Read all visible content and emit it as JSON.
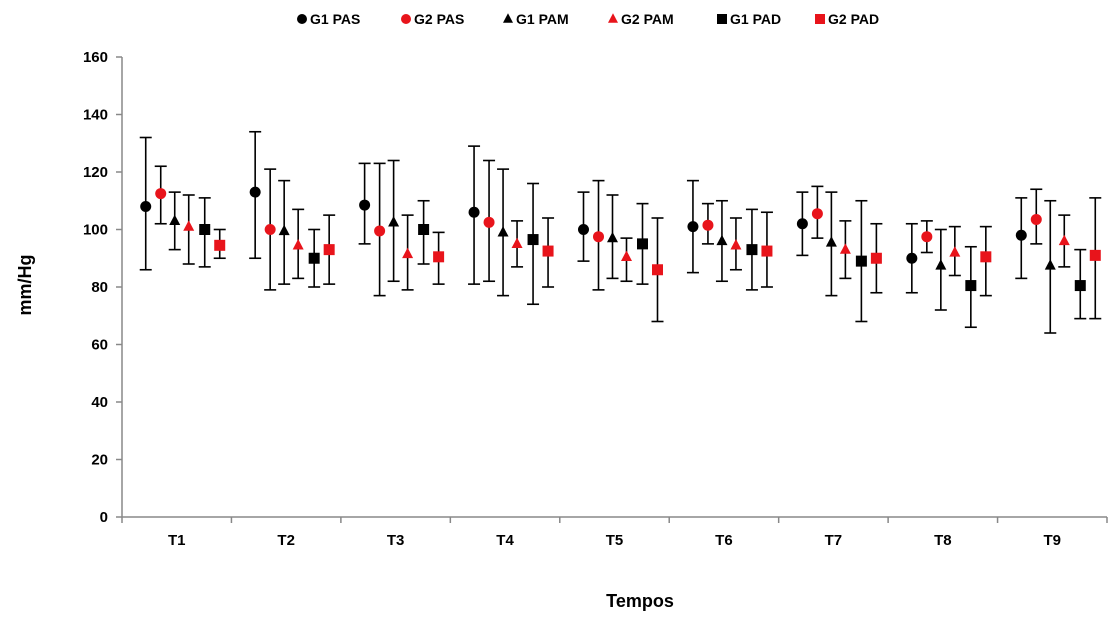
{
  "chart_data": {
    "type": "scatter",
    "title": "",
    "xlabel": "Tempos",
    "ylabel": "mm/Hg",
    "ylim": [
      0,
      160
    ],
    "yticks": [
      0,
      20,
      40,
      60,
      80,
      100,
      120,
      140,
      160
    ],
    "categories": [
      "T1",
      "T2",
      "T3",
      "T4",
      "T5",
      "T6",
      "T7",
      "T8",
      "T9"
    ],
    "legend_position": "top",
    "grid": false,
    "series": [
      {
        "name": "G1 PAS",
        "marker": "circle",
        "color": "#000000",
        "values": [
          108,
          113,
          108.5,
          106,
          100,
          101,
          102,
          90,
          98
        ],
        "err_low": [
          86,
          90,
          95,
          81,
          89,
          85,
          91,
          78,
          83
        ],
        "err_high": [
          132,
          134,
          123,
          129,
          113,
          117,
          113,
          102,
          111
        ]
      },
      {
        "name": "G2 PAS",
        "marker": "circle",
        "color": "#e8141b",
        "values": [
          112.5,
          100,
          99.5,
          102.5,
          97.5,
          101.5,
          105.5,
          97.5,
          103.5
        ],
        "err_low": [
          102,
          79,
          77,
          82,
          79,
          95,
          97,
          92,
          95
        ],
        "err_high": [
          122,
          121,
          123,
          124,
          117,
          109,
          115,
          103,
          114
        ]
      },
      {
        "name": "G1 PAM",
        "marker": "triangle",
        "color": "#000000",
        "values": [
          103,
          99.5,
          102.5,
          99,
          97,
          96,
          95.5,
          87.5,
          87.5
        ],
        "err_low": [
          93,
          81,
          82,
          77,
          83,
          82,
          77,
          72,
          64
        ],
        "err_high": [
          113,
          117,
          124,
          121,
          112,
          110,
          113,
          100,
          110
        ]
      },
      {
        "name": "G2 PAM",
        "marker": "triangle",
        "color": "#e8141b",
        "values": [
          101,
          94.5,
          91.5,
          95,
          90.5,
          94.5,
          93,
          92,
          96
        ],
        "err_low": [
          88,
          83,
          79,
          87,
          82,
          86,
          83,
          84,
          87
        ],
        "err_high": [
          112,
          107,
          105,
          103,
          97,
          104,
          103,
          101,
          105
        ]
      },
      {
        "name": "G1 PAD",
        "marker": "square",
        "color": "#000000",
        "values": [
          100,
          90,
          100,
          96.5,
          95,
          93,
          89,
          80.5,
          80.5
        ],
        "err_low": [
          87,
          80,
          88,
          74,
          81,
          79,
          68,
          66,
          69
        ],
        "err_high": [
          111,
          100,
          110,
          116,
          109,
          107,
          110,
          94,
          93
        ]
      },
      {
        "name": "G2 PAD",
        "marker": "square",
        "color": "#e8141b",
        "values": [
          94.5,
          93,
          90.5,
          92.5,
          86,
          92.5,
          90,
          90.5,
          91
        ],
        "err_low": [
          90,
          81,
          81,
          80,
          68,
          80,
          78,
          77,
          69
        ],
        "err_high": [
          100,
          105,
          99,
          104,
          104,
          106,
          102,
          101,
          111
        ]
      }
    ]
  }
}
